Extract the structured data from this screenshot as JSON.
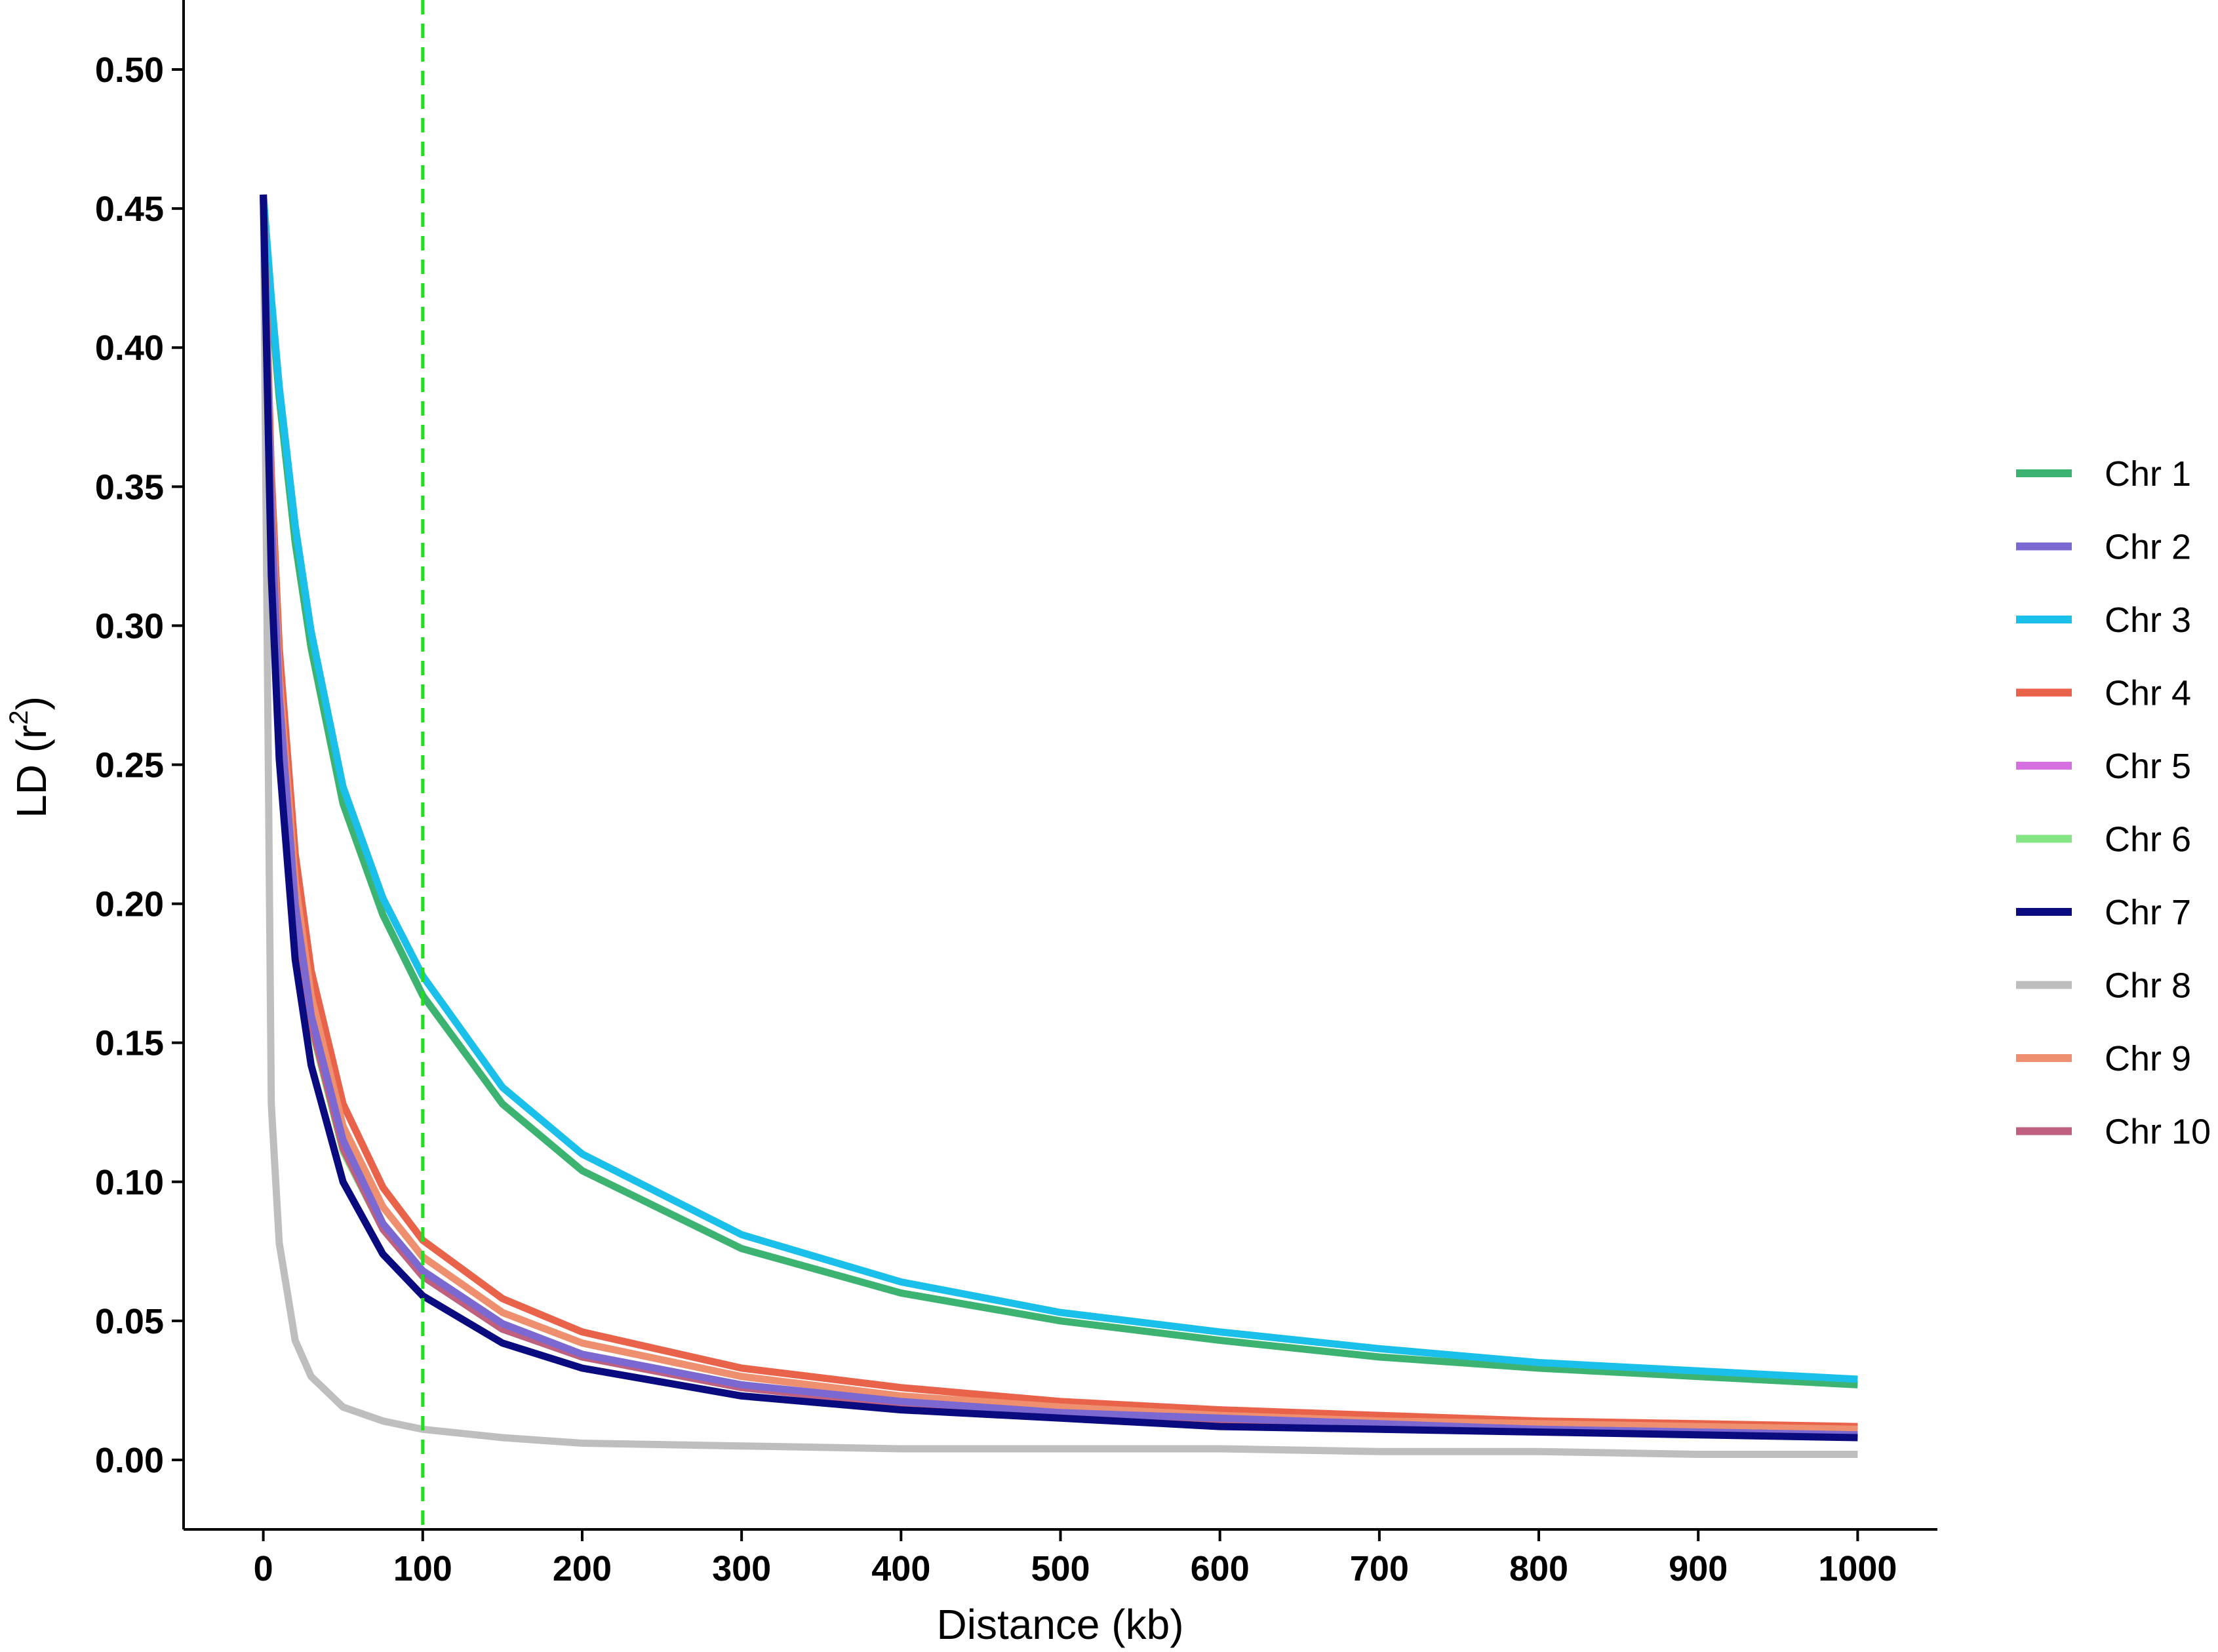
{
  "chart_data": {
    "type": "line",
    "xlabel": "Distance (kb)",
    "ylabel_main": "LD (r",
    "ylabel_sup": "2",
    "ylabel_close": ")",
    "xlim": [
      -50,
      1050
    ],
    "ylim": [
      -0.025,
      0.525
    ],
    "x_ticks": [
      0,
      100,
      200,
      300,
      400,
      500,
      600,
      700,
      800,
      900,
      1000
    ],
    "x_tick_labels": [
      "0",
      "100",
      "200",
      "300",
      "400",
      "500",
      "600",
      "700",
      "800",
      "900",
      "1000"
    ],
    "y_ticks": [
      0.0,
      0.05,
      0.1,
      0.15,
      0.2,
      0.25,
      0.3,
      0.35,
      0.4,
      0.45,
      0.5
    ],
    "y_tick_labels": [
      "0.00",
      "0.05",
      "0.10",
      "0.15",
      "0.20",
      "0.25",
      "0.30",
      "0.35",
      "0.40",
      "0.45",
      "0.50"
    ],
    "reference_line": {
      "x": 100,
      "color": "#22dd22",
      "style": "dashed"
    },
    "grid": false,
    "legend_position": "right",
    "x": [
      0,
      5,
      10,
      20,
      30,
      50,
      75,
      100,
      150,
      200,
      300,
      400,
      500,
      600,
      700,
      800,
      900,
      1000
    ],
    "series": [
      {
        "name": "Chr 1",
        "color": "#3CB371",
        "values": [
          0.455,
          0.416,
          0.382,
          0.33,
          0.292,
          0.236,
          0.196,
          0.167,
          0.128,
          0.104,
          0.076,
          0.06,
          0.05,
          0.043,
          0.037,
          0.033,
          0.03,
          0.027
        ]
      },
      {
        "name": "Chr 2",
        "color": "#7B68D0",
        "values": [
          0.455,
          0.34,
          0.275,
          0.2,
          0.16,
          0.115,
          0.085,
          0.068,
          0.049,
          0.038,
          0.027,
          0.021,
          0.017,
          0.015,
          0.013,
          0.011,
          0.01,
          0.009
        ]
      },
      {
        "name": "Chr 3",
        "color": "#1AC0EA",
        "values": [
          0.455,
          0.418,
          0.386,
          0.336,
          0.298,
          0.242,
          0.202,
          0.174,
          0.134,
          0.11,
          0.081,
          0.064,
          0.053,
          0.046,
          0.04,
          0.035,
          0.032,
          0.029
        ]
      },
      {
        "name": "Chr 4",
        "color": "#E8634A",
        "values": [
          0.455,
          0.355,
          0.292,
          0.218,
          0.176,
          0.128,
          0.098,
          0.079,
          0.058,
          0.046,
          0.033,
          0.026,
          0.021,
          0.018,
          0.016,
          0.014,
          0.013,
          0.012
        ]
      },
      {
        "name": "Chr 5",
        "color": "#D670E0",
        "values": [
          0.455,
          0.338,
          0.272,
          0.198,
          0.158,
          0.113,
          0.084,
          0.067,
          0.048,
          0.037,
          0.026,
          0.02,
          0.017,
          0.014,
          0.012,
          0.011,
          0.01,
          0.009
        ]
      },
      {
        "name": "Chr 6",
        "color": "#85E585",
        "values": [
          0.455,
          0.336,
          0.27,
          0.196,
          0.156,
          0.111,
          0.083,
          0.066,
          0.047,
          0.037,
          0.026,
          0.02,
          0.016,
          0.014,
          0.012,
          0.011,
          0.01,
          0.009
        ]
      },
      {
        "name": "Chr 7",
        "color": "#0B0B80",
        "values": [
          0.455,
          0.318,
          0.252,
          0.18,
          0.142,
          0.1,
          0.074,
          0.059,
          0.042,
          0.033,
          0.023,
          0.018,
          0.015,
          0.012,
          0.011,
          0.01,
          0.009,
          0.008
        ]
      },
      {
        "name": "Chr 8",
        "color": "#BEBEBE",
        "values": [
          0.455,
          0.128,
          0.078,
          0.043,
          0.03,
          0.019,
          0.014,
          0.011,
          0.008,
          0.006,
          0.005,
          0.004,
          0.004,
          0.004,
          0.003,
          0.003,
          0.002,
          0.002
        ]
      },
      {
        "name": "Chr 9",
        "color": "#EE9070",
        "values": [
          0.455,
          0.346,
          0.282,
          0.208,
          0.167,
          0.12,
          0.091,
          0.073,
          0.053,
          0.042,
          0.03,
          0.023,
          0.019,
          0.016,
          0.014,
          0.013,
          0.012,
          0.011
        ]
      },
      {
        "name": "Chr 10",
        "color": "#C06080",
        "values": [
          0.455,
          0.337,
          0.271,
          0.197,
          0.157,
          0.112,
          0.083,
          0.066,
          0.047,
          0.037,
          0.026,
          0.02,
          0.016,
          0.014,
          0.012,
          0.011,
          0.01,
          0.009
        ]
      }
    ]
  }
}
